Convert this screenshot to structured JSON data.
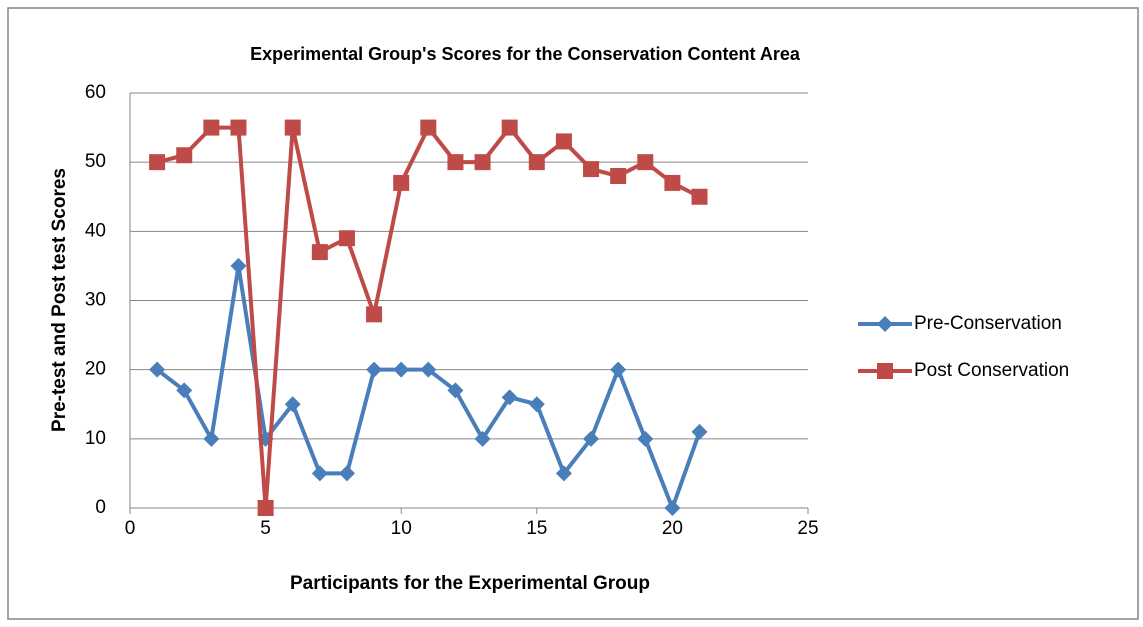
{
  "chart_data": {
    "type": "line",
    "title": "Experimental Group's Scores for the Conservation Content Area",
    "x_label": "Participants for the Experimental Group",
    "y_label": "Pre-test and Post test Scores",
    "x": [
      1,
      2,
      3,
      4,
      5,
      6,
      7,
      8,
      9,
      10,
      11,
      12,
      13,
      14,
      15,
      16,
      17,
      18,
      19,
      20,
      21
    ],
    "series": [
      {
        "name": "Pre-Conservation",
        "color": "#4a7ebb",
        "marker": "diamond",
        "values": [
          20,
          17,
          10,
          35,
          10,
          15,
          5,
          5,
          20,
          20,
          20,
          17,
          10,
          16,
          15,
          5,
          10,
          20,
          10,
          0,
          11
        ]
      },
      {
        "name": "Post Conservation",
        "color": "#be4b48",
        "marker": "square",
        "values": [
          50,
          51,
          55,
          55,
          0,
          55,
          37,
          39,
          28,
          47,
          55,
          50,
          50,
          55,
          50,
          53,
          49,
          48,
          50,
          47,
          45
        ]
      }
    ],
    "xlim": [
      0,
      25
    ],
    "xticks": [
      0,
      5,
      10,
      15,
      20,
      25
    ],
    "ylim": [
      0,
      60
    ],
    "yticks": [
      0,
      10,
      20,
      30,
      40,
      50,
      60
    ],
    "grid": true,
    "legend": "right"
  }
}
